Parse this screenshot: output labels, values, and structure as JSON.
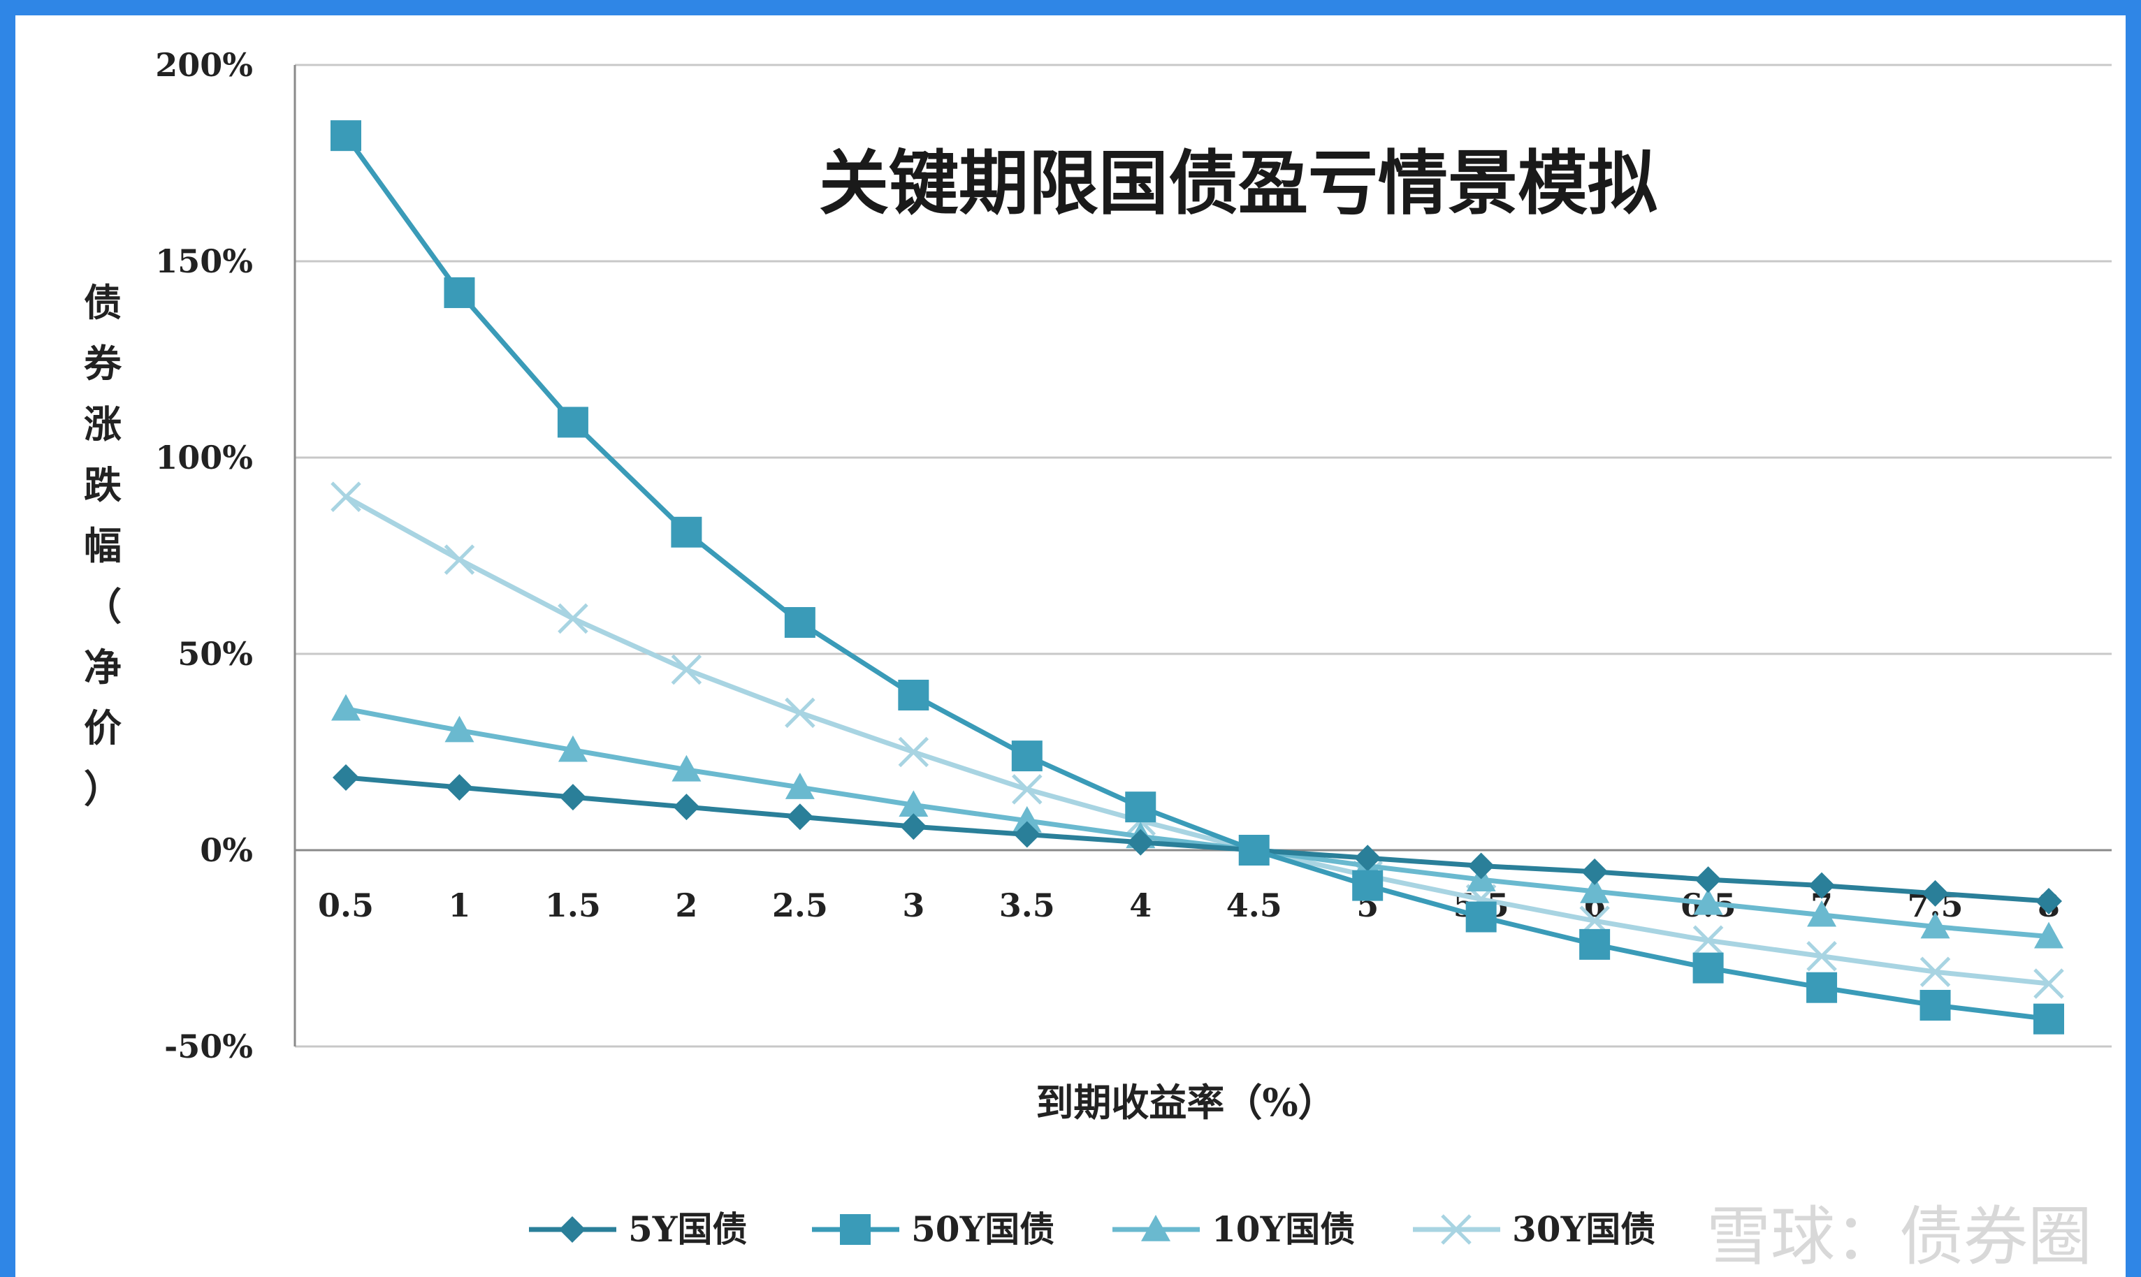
{
  "watermark": "雪球：债券圈",
  "chart_data": {
    "type": "line",
    "title": "关键期限国债盈亏情景模拟",
    "xlabel": "到期收益率（%）",
    "ylabel": "债券涨跌幅（净价）",
    "categories": [
      "0.5",
      "1",
      "1.5",
      "2",
      "2.5",
      "3",
      "3.5",
      "4",
      "4.5",
      "5",
      "5.5",
      "6",
      "6.5",
      "7",
      "7.5",
      "8"
    ],
    "y_ticks": [
      "200%",
      "150%",
      "100%",
      "50%",
      "0%",
      "-50%"
    ],
    "ylim": [
      -50,
      200
    ],
    "grid": true,
    "legend_position": "bottom",
    "series": [
      {
        "name": "5Y国债",
        "marker": "diamond",
        "color": "#2a7f99",
        "values": [
          18.5,
          16,
          13.5,
          11,
          8.5,
          6,
          4,
          2,
          0,
          -2,
          -4,
          -5.5,
          -7.5,
          -9,
          -11,
          -13
        ]
      },
      {
        "name": "50Y国债",
        "marker": "square",
        "color": "#3a9bb8",
        "values": [
          182,
          142,
          109,
          81,
          58,
          39.5,
          24,
          11,
          0,
          -9,
          -17,
          -24,
          -30,
          -35,
          -39.5,
          -43
        ]
      },
      {
        "name": "10Y国债",
        "marker": "triangle",
        "color": "#6ab9cf",
        "values": [
          36,
          30.5,
          25.5,
          20.5,
          16,
          11.5,
          7.5,
          3.5,
          0,
          -4,
          -7.5,
          -10.5,
          -13.5,
          -16.5,
          -19.5,
          -22
        ]
      },
      {
        "name": "30Y国债",
        "marker": "x",
        "color": "#a8d4e2",
        "values": [
          90,
          74,
          59,
          46,
          35,
          25,
          15.5,
          7.5,
          0,
          -6.5,
          -12.5,
          -18,
          -23,
          -27,
          -31,
          -34
        ]
      }
    ]
  }
}
